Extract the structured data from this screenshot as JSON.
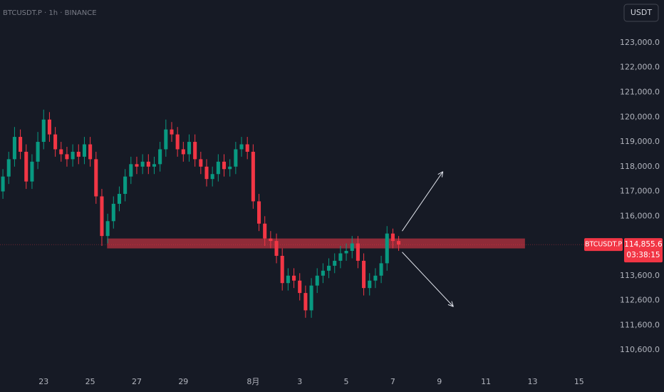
{
  "chart_data": {
    "type": "candlestick",
    "header": "BTCUSDT.P · 1h · BINANCE",
    "currency_button": "USDT",
    "up_color": "#089981",
    "down_color": "#f23645",
    "xlim": [
      -0.5,
      106
    ],
    "ylim": [
      109480,
      124725
    ],
    "xticks": [
      {
        "value": 7,
        "label": "23"
      },
      {
        "value": 15,
        "label": "25"
      },
      {
        "value": 23,
        "label": "27"
      },
      {
        "value": 31,
        "label": "29"
      },
      {
        "value": 43,
        "label": "8月"
      },
      {
        "value": 51,
        "label": "3"
      },
      {
        "value": 59,
        "label": "5"
      },
      {
        "value": 67,
        "label": "7"
      },
      {
        "value": 75,
        "label": "9"
      },
      {
        "value": 83,
        "label": "11"
      },
      {
        "value": 91,
        "label": "13"
      },
      {
        "value": 99,
        "label": "15"
      }
    ],
    "yticks": [
      {
        "value": 123000,
        "label": "123,000.0"
      },
      {
        "value": 122000,
        "label": "122,000.0"
      },
      {
        "value": 121000,
        "label": "121,000.0"
      },
      {
        "value": 120000,
        "label": "120,000.0"
      },
      {
        "value": 119000,
        "label": "119,000.0"
      },
      {
        "value": 118000,
        "label": "118,000.0"
      },
      {
        "value": 117000,
        "label": "117,000.0"
      },
      {
        "value": 116000,
        "label": "116,000.0"
      },
      {
        "value": 113600,
        "label": "113,600.0"
      },
      {
        "value": 112600,
        "label": "112,600.0"
      },
      {
        "value": 111600,
        "label": "111,600.0"
      },
      {
        "value": 110600,
        "label": "110,600.0"
      }
    ],
    "open": [
      117000,
      117600,
      118300,
      119200,
      118600,
      117400,
      118200,
      119000,
      119900,
      119300,
      118700,
      118500,
      118300,
      118600,
      118400,
      118900,
      118300,
      116800,
      115200,
      115800,
      116500,
      116900,
      117600,
      118100,
      118000,
      118200,
      118000,
      118100,
      118700,
      119500,
      119300,
      118700,
      118500,
      119000,
      118300,
      118000,
      117500,
      117700,
      118200,
      117900,
      118000,
      118700,
      118900,
      118600,
      116600,
      115700,
      115100,
      115000,
      114400,
      113300,
      113600,
      113400,
      112900,
      112200,
      113200,
      113600,
      113800,
      114000,
      114200,
      114500,
      114600,
      114900,
      114200,
      113100,
      113400,
      113600,
      114100,
      115300,
      115000
    ],
    "high": [
      117900,
      118600,
      119600,
      119500,
      118900,
      118500,
      119400,
      120300,
      120200,
      119600,
      119000,
      118800,
      118900,
      118900,
      119200,
      119200,
      118600,
      117100,
      116100,
      116800,
      117200,
      117900,
      118400,
      118400,
      118500,
      118500,
      118400,
      119000,
      119900,
      119800,
      119600,
      119000,
      119300,
      119300,
      118600,
      118300,
      118000,
      118500,
      118500,
      118300,
      119000,
      119200,
      119200,
      118900,
      116900,
      116000,
      115400,
      115300,
      114700,
      113900,
      113900,
      113700,
      113200,
      113500,
      113900,
      114100,
      114300,
      114500,
      114800,
      114900,
      115200,
      115200,
      114500,
      113700,
      113900,
      114400,
      115600,
      115500,
      115200
    ],
    "low": [
      116700,
      117300,
      118000,
      118300,
      117100,
      117100,
      117900,
      118700,
      119000,
      118400,
      118200,
      118000,
      118000,
      118100,
      118100,
      118000,
      116500,
      114800,
      114900,
      115500,
      116200,
      116600,
      117300,
      117700,
      117700,
      117700,
      117700,
      117800,
      118400,
      119000,
      118400,
      118200,
      118200,
      118000,
      117700,
      117200,
      117200,
      117400,
      117600,
      117600,
      117700,
      118400,
      118300,
      116300,
      115400,
      114800,
      114700,
      114100,
      113000,
      113000,
      113100,
      112600,
      111900,
      111900,
      112900,
      113300,
      113500,
      113700,
      113900,
      114200,
      114300,
      113900,
      112800,
      112800,
      113100,
      113300,
      113800,
      114700,
      114600
    ],
    "close": [
      117600,
      118300,
      119200,
      118600,
      117400,
      118200,
      119000,
      119900,
      119300,
      118700,
      118500,
      118300,
      118600,
      118400,
      118900,
      118300,
      116800,
      115200,
      115800,
      116500,
      116900,
      117600,
      118100,
      118000,
      118200,
      118000,
      118100,
      118700,
      119500,
      119300,
      118700,
      118500,
      119000,
      118300,
      118000,
      117500,
      117700,
      118200,
      117900,
      118000,
      118700,
      118900,
      118600,
      116600,
      115700,
      115100,
      115000,
      114400,
      113300,
      113600,
      113400,
      112900,
      112200,
      113200,
      113600,
      113800,
      114000,
      114200,
      114500,
      114600,
      114900,
      114200,
      113100,
      113400,
      113600,
      114100,
      115300,
      115000,
      114855.6
    ],
    "zone": {
      "x": [
        17.9,
        89.7
      ],
      "y": [
        114700,
        115100
      ],
      "color": "#b8323f"
    },
    "arrows": [
      {
        "from": [
          68.6,
          115400
        ],
        "to": [
          75.6,
          117800
        ]
      },
      {
        "from": [
          68.6,
          114550
        ],
        "to": [
          77.4,
          112350
        ]
      }
    ],
    "price_tag": {
      "symbol": "BTCUSDT.P",
      "value": 114855.6,
      "label": "114,855.6",
      "countdown": "03:38:15"
    }
  }
}
